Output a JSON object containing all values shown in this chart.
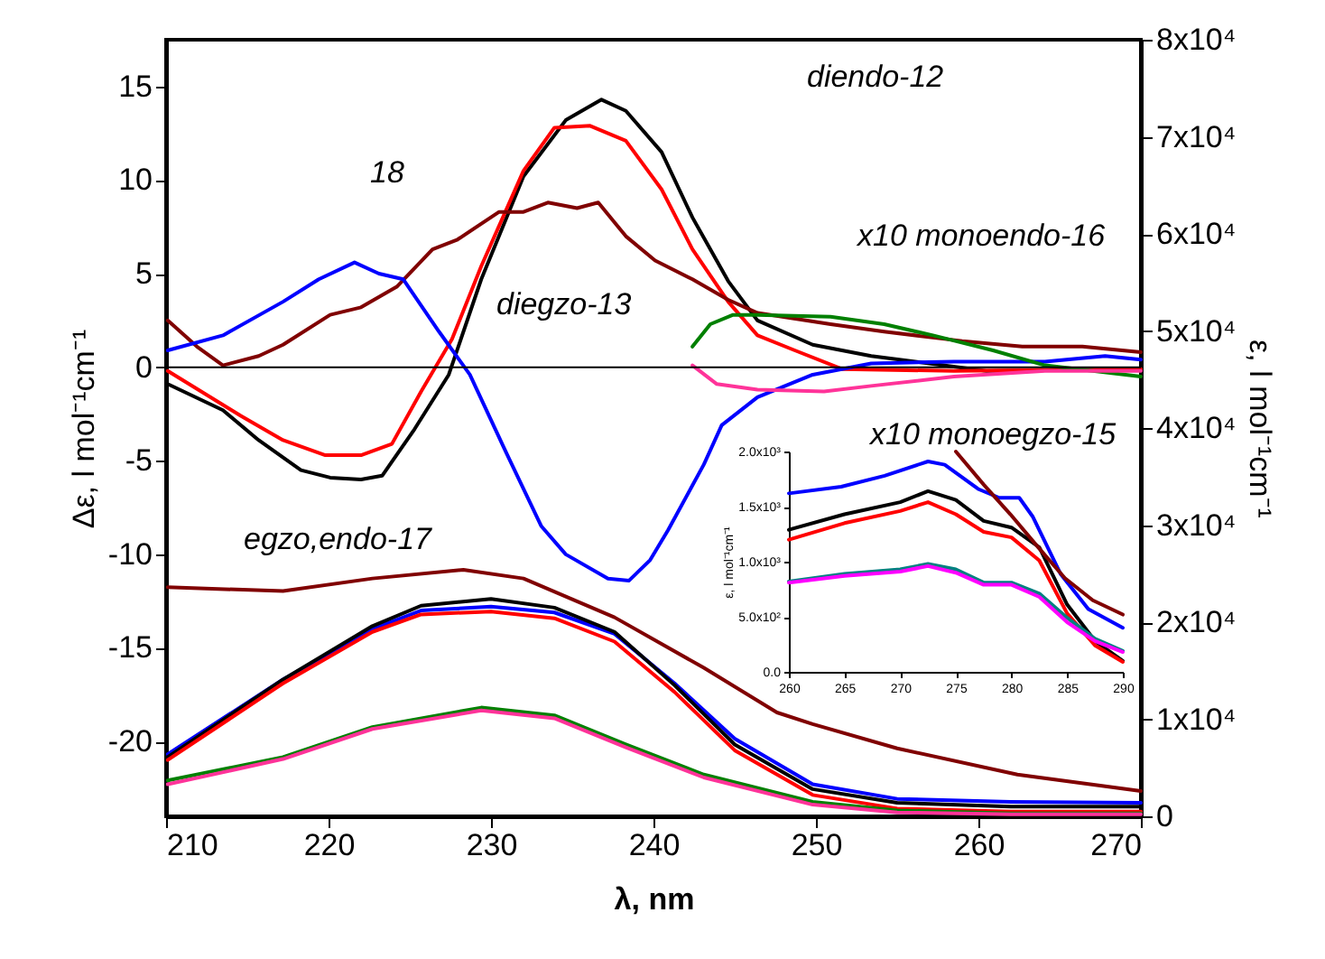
{
  "chart_data": [
    {
      "type": "line",
      "xlabel": "λ, nm",
      "ylabel": "Δε, l mol⁻¹cm⁻¹",
      "y2label": "ε, l mol⁻¹cm⁻¹",
      "xlim": [
        210,
        270
      ],
      "xticks": [
        210,
        220,
        230,
        240,
        250,
        260,
        270
      ],
      "ylim": [
        -24,
        17.5
      ],
      "yticks": [
        -20,
        -15,
        -10,
        -5,
        0,
        5,
        10,
        15
      ],
      "y2lim": [
        0,
        80000
      ],
      "y2ticks": [
        0,
        {
          "value": 10000,
          "label": "1x10⁴"
        },
        {
          "value": 20000,
          "label": "2x10⁴"
        },
        {
          "value": 30000,
          "label": "3x10⁴"
        },
        {
          "value": 40000,
          "label": "4x10⁴"
        },
        {
          "value": 50000,
          "label": "5x10⁴"
        },
        {
          "value": 60000,
          "label": "6x10⁴"
        },
        {
          "value": 70000,
          "label": "7x10⁴"
        },
        {
          "value": 80000,
          "label": "8x10⁴"
        }
      ],
      "line_style": "solid",
      "ref_lines": [
        {
          "axis": "y",
          "value": 0,
          "color": "#000000"
        }
      ],
      "annotations": [
        "diendo-12",
        "18",
        "diegzo-13",
        "x10 monoendo-16",
        "x10 monoegzo-15",
        "egzo,endo-17"
      ],
      "series": [
        {
          "color": "#000000",
          "x": [
            210.1,
            213.5,
            215.7,
            218.3,
            220.1,
            222,
            223.3,
            225.3,
            227.4,
            229.4,
            232,
            234.6,
            236.8,
            238.3,
            240.5,
            242.4,
            244.6,
            246.4,
            249.8,
            253.4,
            260.5,
            270
          ],
          "values": [
            -0.9,
            -2.3,
            -3.9,
            -5.5,
            -5.9,
            -6.0,
            -5.8,
            -3.3,
            -0.4,
            4.7,
            10.2,
            13.2,
            14.3,
            13.7,
            11.5,
            8.0,
            4.6,
            2.5,
            1.2,
            0.6,
            -0.2,
            -0.1
          ]
        },
        {
          "color": "#ff0000",
          "x": [
            210.1,
            214.6,
            217.2,
            219.8,
            222,
            223.9,
            225.7,
            227.6,
            229.4,
            232,
            233.9,
            236.1,
            238.3,
            240.5,
            242.4,
            244.6,
            246.4,
            248.7,
            251.6,
            258.5,
            270
          ],
          "values": [
            -0.2,
            -2.6,
            -3.9,
            -4.7,
            -4.7,
            -4.1,
            -1.3,
            1.5,
            5.4,
            10.5,
            12.8,
            12.9,
            12.1,
            9.5,
            6.3,
            3.5,
            1.7,
            0.9,
            -0.1,
            -0.2,
            -0.1
          ]
        },
        {
          "color": "#800000",
          "x": [
            210.1,
            211.9,
            213.5,
            215.7,
            217.2,
            220.1,
            222,
            224.2,
            226.4,
            227.9,
            230.5,
            232,
            233.5,
            235.3,
            236.6,
            238.3,
            240.1,
            242.4,
            244.6,
            246.4,
            250.9,
            254.2,
            259,
            262.7,
            266.4,
            270
          ],
          "values": [
            2.5,
            1.1,
            0.1,
            0.6,
            1.2,
            2.8,
            3.2,
            4.3,
            6.3,
            6.8,
            8.3,
            8.3,
            8.8,
            8.5,
            8.8,
            7.0,
            5.7,
            4.7,
            3.6,
            2.9,
            2.3,
            1.9,
            1.4,
            1.1,
            1.1,
            0.8
          ]
        },
        {
          "color": "#0000ff",
          "x": [
            210.1,
            213.5,
            217.2,
            219.4,
            221.6,
            223.1,
            224.6,
            226.8,
            228.7,
            230.9,
            233.1,
            234.6,
            237.2,
            238.5,
            239.8,
            240.9,
            243.1,
            244.2,
            246.4,
            249.8,
            253.4,
            258.5,
            264.1,
            267.8,
            270
          ],
          "values": [
            0.9,
            1.7,
            3.5,
            4.7,
            5.6,
            5.0,
            4.7,
            1.9,
            -0.4,
            -4.5,
            -8.5,
            -10.0,
            -11.3,
            -11.4,
            -10.3,
            -8.7,
            -5.2,
            -3.1,
            -1.6,
            -0.4,
            0.2,
            0.3,
            0.3,
            0.6,
            0.4
          ]
        },
        {
          "color": "#008000",
          "x": [
            242.4,
            243.5,
            244.9,
            246.4,
            250.9,
            254.2,
            257.2,
            260.9,
            264.1,
            270
          ],
          "values": [
            1.1,
            2.3,
            2.8,
            2.8,
            2.7,
            2.3,
            1.7,
            0.9,
            0.1,
            -0.5
          ]
        },
        {
          "color": "#ff3399",
          "x": [
            242.4,
            243.9,
            246.4,
            250.5,
            253.4,
            258.5,
            264.1,
            270
          ],
          "values": [
            0.1,
            -0.9,
            -1.2,
            -1.3,
            -1.0,
            -0.5,
            -0.2,
            -0.2
          ]
        },
        {
          "color": "#800000",
          "axis": "y2",
          "x": [
            210.1,
            217.2,
            222.7,
            228.3,
            232,
            237.6,
            243.1,
            247.6,
            249.8,
            255,
            262.4,
            270
          ],
          "values": [
            23600,
            23200,
            24500,
            25400,
            24500,
            20500,
            15300,
            10700,
            9500,
            7000,
            4300,
            2600
          ]
        },
        {
          "color": "#0000ff",
          "axis": "y2",
          "x": [
            210.1,
            217.2,
            222.7,
            225.7,
            230,
            233.9,
            237.6,
            241.3,
            245,
            249.8,
            255,
            262,
            270
          ],
          "values": [
            6400,
            14100,
            19300,
            21200,
            21600,
            21000,
            18800,
            13700,
            8000,
            3300,
            1800,
            1500,
            1400
          ]
        },
        {
          "color": "#000000",
          "axis": "y2",
          "x": [
            210.1,
            217.2,
            222.7,
            225.7,
            230,
            233.9,
            237.6,
            241.3,
            245,
            249.8,
            255,
            262,
            270
          ],
          "values": [
            6100,
            14100,
            19600,
            21700,
            22400,
            21500,
            19000,
            13500,
            7400,
            2800,
            1400,
            1000,
            1000
          ]
        },
        {
          "color": "#ff0000",
          "axis": "y2",
          "x": [
            210.1,
            217.2,
            222.7,
            225.7,
            230,
            233.9,
            237.6,
            241.3,
            245,
            249.8,
            255,
            262,
            270
          ],
          "values": [
            5800,
            13700,
            19000,
            20800,
            21100,
            20400,
            18000,
            12800,
            6800,
            2200,
            800,
            500,
            500
          ]
        },
        {
          "color": "#008000",
          "axis": "y2",
          "x": [
            210.1,
            217.2,
            222.7,
            229.4,
            233.9,
            238.3,
            243.1,
            249.8,
            255,
            262,
            270
          ],
          "values": [
            3700,
            6100,
            9200,
            11200,
            10400,
            7400,
            4300,
            1500,
            600,
            300,
            300
          ]
        },
        {
          "color": "#ff3399",
          "axis": "y2",
          "x": [
            210.1,
            217.2,
            222.7,
            229.4,
            233.9,
            238.3,
            243.1,
            249.8,
            255,
            262,
            270
          ],
          "values": [
            3300,
            5900,
            9000,
            10900,
            10100,
            7100,
            4000,
            1200,
            400,
            200,
            200
          ]
        }
      ]
    },
    {
      "type": "line",
      "ylabel": "ε, l mol⁻¹cm⁻¹",
      "xlim": [
        260,
        290
      ],
      "xticks": [
        260,
        265,
        270,
        275,
        280,
        285,
        290
      ],
      "ylim": [
        0,
        2000
      ],
      "yticks": [
        {
          "value": 0,
          "label": "0.0"
        },
        {
          "value": 500,
          "label": "5.0x10²"
        },
        {
          "value": 1000,
          "label": "1.0x10³"
        },
        {
          "value": 1500,
          "label": "1.5x10³"
        },
        {
          "value": 2000,
          "label": "2.0x10³"
        }
      ],
      "line_style": "solid",
      "series": [
        {
          "color": "#0000ff",
          "x": [
            260,
            264.7,
            268.6,
            272.5,
            274,
            277,
            278.9,
            280.7,
            281.9,
            284.4,
            286.9,
            290
          ],
          "values": [
            1620,
            1680,
            1780,
            1910,
            1880,
            1660,
            1580,
            1580,
            1410,
            890,
            570,
            400
          ]
        },
        {
          "color": "#000000",
          "x": [
            260,
            265,
            270,
            272.5,
            275,
            277.5,
            280,
            282.5,
            285,
            287.5,
            290
          ],
          "values": [
            1290,
            1430,
            1540,
            1640,
            1560,
            1370,
            1310,
            1130,
            610,
            280,
            100
          ]
        },
        {
          "color": "#ff0000",
          "x": [
            260,
            265,
            270,
            272.5,
            275,
            277.5,
            280,
            282.5,
            285,
            287.5,
            290
          ],
          "values": [
            1200,
            1350,
            1460,
            1540,
            1430,
            1270,
            1220,
            1010,
            530,
            240,
            90
          ]
        },
        {
          "color": "#008080",
          "x": [
            260,
            265,
            270,
            272.5,
            275,
            277.5,
            280,
            282.5,
            285,
            287.5,
            290
          ],
          "values": [
            820,
            890,
            930,
            980,
            930,
            810,
            810,
            710,
            490,
            300,
            190
          ]
        },
        {
          "color": "#ff00ff",
          "x": [
            260,
            265,
            270,
            272.5,
            275,
            277.5,
            280,
            282.5,
            285,
            287.5,
            290
          ],
          "values": [
            810,
            870,
            910,
            960,
            900,
            790,
            790,
            680,
            450,
            280,
            180
          ]
        },
        {
          "color": "#800000",
          "x": [
            275,
            277.5,
            279.9,
            282.4,
            284.8,
            287.3,
            290
          ],
          "values": [
            2000,
            1700,
            1430,
            1130,
            850,
            650,
            520
          ]
        }
      ]
    }
  ]
}
